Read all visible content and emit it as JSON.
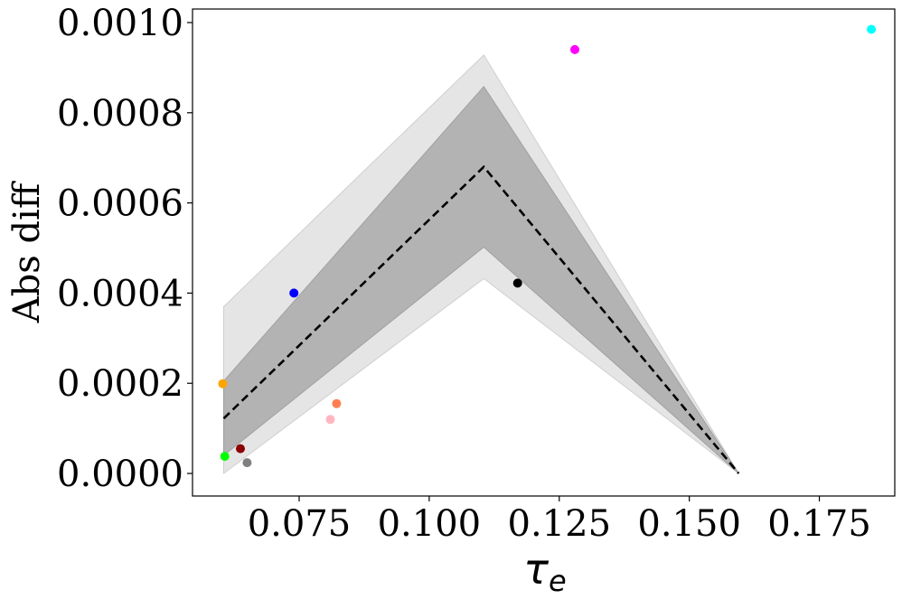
{
  "chart_data": {
    "type": "scatter",
    "xlabel_main": "τ",
    "xlabel_sub": "e",
    "ylabel": "Abs diff",
    "title": "",
    "xlim": [
      0.0545,
      0.1895
    ],
    "ylim": [
      -5e-05,
      0.00103
    ],
    "grid": false,
    "xticks": [
      {
        "value": 0.075,
        "label": "0.075"
      },
      {
        "value": 0.1,
        "label": "0.100"
      },
      {
        "value": 0.125,
        "label": "0.125"
      },
      {
        "value": 0.15,
        "label": "0.150"
      },
      {
        "value": 0.175,
        "label": "0.175"
      }
    ],
    "yticks": [
      {
        "value": 0.0,
        "label": "0.0000"
      },
      {
        "value": 0.0002,
        "label": "0.0002"
      },
      {
        "value": 0.0004,
        "label": "0.0004"
      },
      {
        "value": 0.0006,
        "label": "0.0006"
      },
      {
        "value": 0.0008,
        "label": "0.0008"
      },
      {
        "value": 0.001,
        "label": "0.0010"
      }
    ],
    "mean_line": {
      "style": "dashed",
      "color": "#000000",
      "x": [
        0.0605,
        0.1105,
        0.1595
      ],
      "y": [
        0.000122,
        0.00068,
        0.0
      ]
    },
    "inner_band": {
      "color": "#b3b3b3",
      "x": [
        0.0605,
        0.1105,
        0.1595
      ],
      "lower": [
        4e-05,
        0.000502,
        0.0
      ],
      "upper": [
        0.000205,
        0.000858,
        0.0
      ]
    },
    "outer_band": {
      "color": "#e5e5e5",
      "x": [
        0.0605,
        0.1105,
        0.1595
      ],
      "lower": [
        0.0,
        0.000432,
        0.0
      ],
      "upper": [
        0.00037,
        0.000928,
        0.0
      ]
    },
    "points": [
      {
        "x": 0.0603,
        "y": 0.000199,
        "color": "#ffa500"
      },
      {
        "x": 0.0607,
        "y": 3.8e-05,
        "color": "#00ff00"
      },
      {
        "x": 0.0637,
        "y": 5.5e-05,
        "color": "#8b0000"
      },
      {
        "x": 0.065,
        "y": 2.4e-05,
        "color": "#808080"
      },
      {
        "x": 0.074,
        "y": 0.0004,
        "color": "#0000ff"
      },
      {
        "x": 0.081,
        "y": 0.00012,
        "color": "#ffb6c1"
      },
      {
        "x": 0.0822,
        "y": 0.000155,
        "color": "#ff7f50"
      },
      {
        "x": 0.117,
        "y": 0.000422,
        "color": "#000000"
      },
      {
        "x": 0.128,
        "y": 0.00094,
        "color": "#ff00ff"
      },
      {
        "x": 0.185,
        "y": 0.000985,
        "color": "#00ffff"
      }
    ]
  }
}
